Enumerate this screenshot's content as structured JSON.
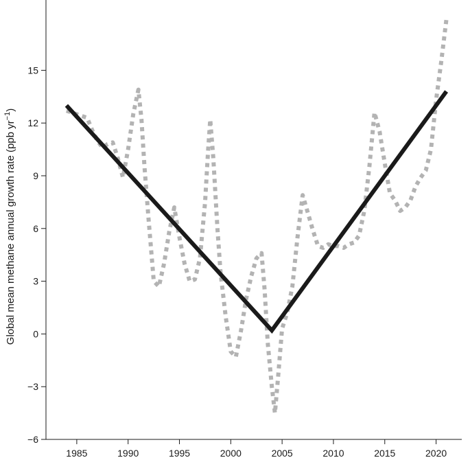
{
  "chart_data": {
    "type": "line",
    "title": "",
    "ylabel_main": "Global mean methane annual growth rate (ppb yr",
    "ylabel_sup": "−1",
    "ylabel_close": ")",
    "xlabel": "",
    "xlim": [
      1982,
      2022.5
    ],
    "ylim": [
      -6,
      19
    ],
    "x_ticks": [
      1985,
      1990,
      1995,
      2000,
      2005,
      2010,
      2015,
      2020
    ],
    "x_tick_labels": [
      "1985",
      "1990",
      "1995",
      "2000",
      "2005",
      "2010",
      "2015",
      "2020"
    ],
    "y_ticks": [
      -6,
      -3,
      0,
      3,
      6,
      9,
      12,
      15
    ],
    "y_tick_labels": [
      "−6",
      "−3",
      "0",
      "3",
      "6",
      "9",
      "12",
      "15"
    ],
    "grid": false,
    "series": [
      {
        "style": "dotted",
        "color": "#b3b3b3",
        "x": [
          1984.0,
          1984.5,
          1985.0,
          1985.5,
          1986.0,
          1986.5,
          1987.0,
          1987.5,
          1988.0,
          1988.5,
          1989.0,
          1989.5,
          1990.0,
          1990.5,
          1991.0,
          1991.3,
          1991.6,
          1992.0,
          1992.5,
          1993.0,
          1993.5,
          1994.0,
          1994.5,
          1995.0,
          1995.5,
          1996.0,
          1996.5,
          1997.0,
          1997.5,
          1997.8,
          1998.0,
          1998.3,
          1998.7,
          1999.0,
          1999.5,
          2000.0,
          2000.5,
          2001.0,
          2001.5,
          2002.0,
          2002.5,
          2003.0,
          2003.3,
          2003.6,
          2004.0,
          2004.3,
          2004.6,
          2005.0,
          2005.5,
          2006.0,
          2006.5,
          2007.0,
          2007.5,
          2008.0,
          2008.5,
          2009.0,
          2009.5,
          2010.0,
          2010.5,
          2011.0,
          2011.5,
          2012.0,
          2012.5,
          2013.0,
          2013.5,
          2014.0,
          2014.5,
          2015.0,
          2015.5,
          2016.0,
          2016.5,
          2017.0,
          2017.5,
          2018.0,
          2018.5,
          2019.0,
          2019.5,
          2020.0,
          2020.5,
          2021.0
        ],
        "y": [
          12.7,
          12.6,
          12.5,
          12.4,
          12.3,
          11.6,
          11.0,
          10.6,
          10.8,
          10.9,
          10.0,
          8.9,
          10.5,
          12.5,
          13.9,
          12.2,
          9.5,
          6.5,
          3.0,
          2.7,
          4.0,
          5.8,
          7.2,
          5.5,
          4.0,
          3.0,
          3.1,
          4.3,
          7.5,
          10.5,
          12.2,
          10.0,
          6.0,
          3.5,
          1.0,
          -1.0,
          -1.3,
          0.2,
          2.0,
          3.3,
          4.3,
          4.6,
          2.5,
          -0.5,
          -3.0,
          -4.5,
          -2.5,
          0.3,
          1.2,
          2.7,
          5.5,
          7.9,
          6.9,
          5.9,
          5.0,
          4.9,
          5.1,
          5.0,
          5.0,
          4.9,
          5.1,
          5.2,
          5.6,
          7.0,
          9.5,
          12.6,
          11.5,
          9.7,
          8.0,
          7.6,
          7.0,
          7.2,
          7.6,
          8.4,
          8.9,
          9.3,
          10.5,
          13.3,
          15.5,
          17.9
        ]
      },
      {
        "style": "solid",
        "color": "#1a1a1a",
        "x": [
          1984.0,
          2004.0,
          2021.0
        ],
        "y": [
          13.0,
          0.2,
          13.8
        ]
      }
    ]
  }
}
